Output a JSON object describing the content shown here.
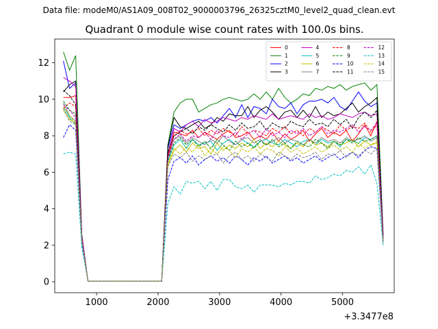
{
  "header": {
    "supertitle": "Data file: modeM0/AS1A09_008T02_9000003796_26325cztM0_level2_quad_clean.evt",
    "title": "Quadrant 0 module wise count rates with 100.0s bins."
  },
  "chart_data": {
    "type": "line",
    "title": "Quadrant 0 module wise count rates with 100.0s bins.",
    "xlabel": "",
    "ylabel": "",
    "x_offset_label": "+3.3477e8",
    "xlim": [
      320,
      5840
    ],
    "ylim": [
      -0.6,
      13.3
    ],
    "xticks": [
      1000,
      2000,
      3000,
      4000,
      5000
    ],
    "xtick_labels": [
      "1000",
      "2000",
      "3000",
      "4000",
      "5000"
    ],
    "yticks": [
      0,
      2,
      4,
      6,
      8,
      10,
      12
    ],
    "ytick_labels": [
      "0",
      "2",
      "4",
      "6",
      "8",
      "10",
      "12"
    ],
    "grid": false,
    "legend": {
      "placement": "top-right",
      "ncol": 4
    },
    "x": [
      460,
      560,
      660,
      760,
      860,
      960,
      1060,
      1160,
      1260,
      1360,
      1460,
      1560,
      1660,
      1760,
      1860,
      1960,
      2060,
      2160,
      2260,
      2360,
      2460,
      2560,
      2660,
      2760,
      2860,
      2960,
      3060,
      3160,
      3260,
      3360,
      3460,
      3560,
      3660,
      3760,
      3860,
      3960,
      4060,
      4160,
      4260,
      4360,
      4460,
      4560,
      4660,
      4760,
      4860,
      4960,
      5060,
      5160,
      5260,
      5360,
      5460,
      5560,
      5660
    ],
    "series": [
      {
        "name": "0",
        "color": "#ff0000",
        "dash": "solid",
        "values": [
          10.1,
          10.1,
          10.2,
          2.4,
          0.03,
          0.03,
          0.03,
          0.03,
          0.03,
          0.03,
          0.03,
          0.03,
          0.03,
          0.03,
          0.03,
          0.03,
          0.03,
          6.8,
          8.2,
          8.1,
          8.0,
          8.3,
          7.9,
          8.2,
          8.0,
          7.8,
          8.1,
          8.3,
          7.9,
          8.0,
          8.2,
          7.8,
          8.0,
          7.8,
          8.2,
          7.7,
          8.1,
          7.8,
          8.0,
          8.3,
          7.7,
          8.1,
          8.4,
          7.9,
          8.2,
          8.0,
          8.3,
          7.7,
          8.1,
          8.6,
          8.0,
          8.8,
          2.5
        ]
      },
      {
        "name": "1",
        "color": "#008000",
        "dash": "solid",
        "values": [
          12.6,
          11.6,
          12.4,
          2.6,
          0.03,
          0.03,
          0.03,
          0.03,
          0.03,
          0.03,
          0.03,
          0.03,
          0.03,
          0.03,
          0.03,
          0.03,
          0.03,
          7.5,
          9.3,
          9.8,
          10.0,
          10.0,
          9.3,
          9.5,
          9.7,
          9.8,
          10.0,
          10.1,
          10.0,
          9.9,
          10.0,
          10.3,
          10.0,
          10.4,
          10.0,
          10.6,
          10.1,
          9.8,
          10.0,
          10.3,
          10.2,
          10.6,
          10.5,
          10.7,
          10.6,
          10.8,
          10.5,
          10.7,
          10.8,
          10.9,
          10.5,
          10.8,
          2.7
        ]
      },
      {
        "name": "2",
        "color": "#0000ff",
        "dash": "solid",
        "values": [
          12.1,
          10.6,
          10.9,
          2.6,
          0.03,
          0.03,
          0.03,
          0.03,
          0.03,
          0.03,
          0.03,
          0.03,
          0.03,
          0.03,
          0.03,
          0.03,
          0.03,
          7.3,
          8.6,
          8.4,
          8.6,
          8.8,
          8.9,
          8.8,
          9.0,
          8.7,
          9.1,
          9.5,
          9.0,
          9.7,
          9.0,
          9.6,
          9.5,
          9.2,
          10.0,
          9.6,
          9.5,
          9.8,
          9.2,
          9.7,
          9.9,
          9.9,
          10.0,
          9.8,
          10.1,
          9.6,
          9.4,
          9.9,
          10.4,
          9.9,
          9.6,
          9.8,
          2.6
        ]
      },
      {
        "name": "3",
        "color": "#000000",
        "dash": "solid",
        "values": [
          10.4,
          10.8,
          11.0,
          2.5,
          0.03,
          0.03,
          0.03,
          0.03,
          0.03,
          0.03,
          0.03,
          0.03,
          0.03,
          0.03,
          0.03,
          0.03,
          0.03,
          7.4,
          9.0,
          8.5,
          8.4,
          8.6,
          8.8,
          8.4,
          8.6,
          9.0,
          8.8,
          9.2,
          9.1,
          9.1,
          9.6,
          9.0,
          9.4,
          9.6,
          9.3,
          8.9,
          9.3,
          9.4,
          9.0,
          9.4,
          9.0,
          9.6,
          9.0,
          9.3,
          9.1,
          9.2,
          9.5,
          9.8,
          9.3,
          9.6,
          9.8,
          10.1,
          2.5
        ]
      },
      {
        "name": "4",
        "color": "#bf00bf",
        "dash": "solid",
        "values": [
          11.2,
          11.0,
          10.7,
          2.6,
          0.03,
          0.03,
          0.03,
          0.03,
          0.03,
          0.03,
          0.03,
          0.03,
          0.03,
          0.03,
          0.03,
          0.03,
          0.03,
          7.0,
          8.4,
          8.2,
          8.6,
          8.8,
          8.5,
          8.9,
          8.7,
          8.8,
          9.0,
          8.9,
          8.8,
          9.0,
          8.9,
          9.1,
          9.0,
          8.9,
          9.2,
          8.9,
          9.0,
          9.1,
          9.0,
          8.9,
          9.2,
          9.0,
          9.1,
          8.9,
          9.0,
          9.2,
          9.1,
          9.0,
          9.2,
          9.3,
          9.1,
          9.2,
          2.6
        ]
      },
      {
        "name": "5",
        "color": "#00bfbf",
        "dash": "solid",
        "values": [
          9.6,
          9.0,
          8.6,
          2.3,
          0.03,
          0.03,
          0.03,
          0.03,
          0.03,
          0.03,
          0.03,
          0.03,
          0.03,
          0.03,
          0.03,
          0.03,
          0.03,
          6.6,
          7.5,
          7.8,
          7.3,
          7.8,
          7.5,
          7.6,
          7.7,
          7.2,
          7.6,
          7.8,
          7.5,
          7.8,
          7.6,
          7.4,
          7.7,
          7.8,
          7.6,
          7.5,
          7.8,
          7.6,
          7.4,
          7.7,
          7.8,
          7.5,
          7.8,
          7.6,
          7.7,
          7.4,
          7.8,
          7.7,
          7.6,
          7.9,
          7.8,
          8.0,
          2.3
        ]
      },
      {
        "name": "6",
        "color": "#bfbf00",
        "dash": "solid",
        "values": [
          9.4,
          8.9,
          8.7,
          2.3,
          0.03,
          0.03,
          0.03,
          0.03,
          0.03,
          0.03,
          0.03,
          0.03,
          0.03,
          0.03,
          0.03,
          0.03,
          0.03,
          6.4,
          7.2,
          7.5,
          7.1,
          7.6,
          7.3,
          7.4,
          7.0,
          7.6,
          7.2,
          7.5,
          7.3,
          7.6,
          7.4,
          7.8,
          7.3,
          7.6,
          7.4,
          7.7,
          7.5,
          7.3,
          7.6,
          7.4,
          7.8,
          7.5,
          7.6,
          7.4,
          7.7,
          7.5,
          7.6,
          7.8,
          7.4,
          7.7,
          7.5,
          7.6,
          2.2
        ]
      },
      {
        "name": "7",
        "color": "#808080",
        "dash": "solid",
        "values": [
          9.8,
          9.1,
          8.8,
          2.3,
          0.03,
          0.03,
          0.03,
          0.03,
          0.03,
          0.03,
          0.03,
          0.03,
          0.03,
          0.03,
          0.03,
          0.03,
          0.03,
          6.8,
          7.8,
          8.0,
          7.6,
          7.9,
          7.7,
          7.5,
          7.8,
          7.6,
          8.0,
          7.7,
          7.5,
          7.8,
          7.9,
          7.6,
          7.8,
          7.5,
          7.7,
          7.9,
          7.6,
          7.8,
          7.7,
          7.5,
          7.8,
          7.6,
          7.9,
          7.7,
          7.8,
          7.6,
          7.9,
          7.7,
          7.8,
          8.0,
          7.7,
          7.9,
          2.3
        ]
      },
      {
        "name": "8",
        "color": "#ff0000",
        "dash": "dashed",
        "values": [
          9.5,
          9.8,
          9.6,
          2.4,
          0.03,
          0.03,
          0.03,
          0.03,
          0.03,
          0.03,
          0.03,
          0.03,
          0.03,
          0.03,
          0.03,
          0.03,
          0.03,
          6.9,
          8.0,
          8.3,
          8.1,
          8.2,
          8.4,
          8.0,
          8.3,
          8.1,
          8.4,
          8.2,
          8.0,
          8.5,
          8.1,
          8.3,
          8.2,
          8.0,
          8.4,
          8.2,
          8.5,
          8.1,
          8.3,
          8.0,
          8.4,
          8.2,
          8.5,
          8.3,
          8.1,
          8.6,
          8.3,
          8.5,
          8.4,
          8.7,
          8.2,
          8.6,
          2.4
        ]
      },
      {
        "name": "9",
        "color": "#008000",
        "dash": "dashed",
        "values": [
          9.9,
          9.4,
          9.2,
          2.4,
          0.03,
          0.03,
          0.03,
          0.03,
          0.03,
          0.03,
          0.03,
          0.03,
          0.03,
          0.03,
          0.03,
          0.03,
          0.03,
          6.7,
          7.6,
          7.9,
          7.5,
          7.8,
          7.4,
          7.7,
          7.3,
          7.8,
          7.5,
          7.2,
          7.7,
          7.4,
          7.6,
          7.3,
          7.7,
          7.5,
          7.8,
          7.4,
          7.6,
          7.3,
          7.7,
          7.5,
          7.4,
          7.8,
          7.6,
          7.3,
          7.7,
          7.5,
          7.8,
          7.6,
          7.9,
          7.7,
          7.8,
          8.0,
          2.3
        ]
      },
      {
        "name": "10",
        "color": "#0000ff",
        "dash": "dashed",
        "values": [
          7.9,
          8.6,
          8.3,
          2.1,
          0.03,
          0.03,
          0.03,
          0.03,
          0.03,
          0.03,
          0.03,
          0.03,
          0.03,
          0.03,
          0.03,
          0.03,
          0.03,
          5.6,
          6.6,
          6.8,
          6.5,
          6.9,
          6.4,
          6.7,
          6.9,
          6.6,
          6.8,
          6.5,
          6.9,
          6.7,
          6.4,
          6.8,
          6.6,
          6.9,
          6.5,
          6.7,
          6.9,
          6.6,
          6.8,
          6.5,
          6.7,
          6.9,
          6.6,
          6.8,
          7.0,
          6.7,
          6.9,
          7.1,
          6.8,
          7.2,
          7.4,
          7.3,
          2.2
        ]
      },
      {
        "name": "11",
        "color": "#000000",
        "dash": "dashed",
        "values": [
          10.5,
          10.2,
          9.7,
          2.4,
          0.03,
          0.03,
          0.03,
          0.03,
          0.03,
          0.03,
          0.03,
          0.03,
          0.03,
          0.03,
          0.03,
          0.03,
          0.03,
          7.1,
          8.0,
          8.2,
          8.4,
          8.1,
          8.5,
          8.3,
          8.6,
          8.4,
          8.2,
          8.6,
          8.3,
          8.7,
          8.4,
          8.5,
          8.8,
          8.3,
          8.7,
          8.5,
          8.4,
          8.8,
          8.6,
          8.5,
          8.9,
          8.6,
          8.7,
          8.5,
          8.9,
          8.6,
          8.9,
          8.4,
          9.0,
          9.3,
          9.0,
          9.4,
          2.4
        ]
      },
      {
        "name": "12",
        "color": "#bf00bf",
        "dash": "dashed",
        "values": [
          9.7,
          9.4,
          9.0,
          2.4,
          0.03,
          0.03,
          0.03,
          0.03,
          0.03,
          0.03,
          0.03,
          0.03,
          0.03,
          0.03,
          0.03,
          0.03,
          0.03,
          6.8,
          7.8,
          8.1,
          7.7,
          8.0,
          7.9,
          8.2,
          7.8,
          8.3,
          8.0,
          7.9,
          8.2,
          7.8,
          8.1,
          8.3,
          7.9,
          8.4,
          8.0,
          8.2,
          7.9,
          8.3,
          8.1,
          8.4,
          8.0,
          8.2,
          8.5,
          8.1,
          8.3,
          8.2,
          8.4,
          8.6,
          8.2,
          8.5,
          8.3,
          8.7,
          2.3
        ]
      },
      {
        "name": "13",
        "color": "#00bfbf",
        "dash": "dashed",
        "values": [
          7.0,
          7.1,
          7.0,
          1.9,
          0.03,
          0.03,
          0.03,
          0.03,
          0.03,
          0.03,
          0.03,
          0.03,
          0.03,
          0.03,
          0.03,
          0.03,
          0.03,
          4.3,
          5.2,
          4.8,
          5.5,
          5.4,
          5.5,
          5.1,
          5.5,
          5.0,
          5.6,
          5.6,
          5.2,
          5.1,
          5.3,
          4.9,
          5.3,
          5.3,
          5.3,
          5.2,
          5.4,
          5.3,
          5.5,
          5.5,
          5.4,
          5.8,
          5.6,
          5.7,
          5.9,
          5.8,
          6.1,
          6.0,
          6.3,
          5.9,
          6.4,
          5.4,
          2.0
        ]
      },
      {
        "name": "14",
        "color": "#bfbf00",
        "dash": "dashed",
        "values": [
          9.6,
          9.1,
          8.7,
          2.3,
          0.03,
          0.03,
          0.03,
          0.03,
          0.03,
          0.03,
          0.03,
          0.03,
          0.03,
          0.03,
          0.03,
          0.03,
          0.03,
          6.5,
          7.3,
          7.0,
          7.4,
          7.1,
          7.5,
          6.9,
          7.3,
          7.0,
          7.4,
          7.2,
          6.8,
          7.3,
          7.1,
          7.4,
          7.0,
          7.3,
          7.2,
          6.9,
          7.4,
          7.1,
          7.3,
          7.0,
          7.2,
          7.4,
          7.1,
          7.3,
          7.5,
          7.2,
          7.4,
          7.1,
          7.6,
          7.3,
          7.5,
          7.7,
          2.2
        ]
      },
      {
        "name": "15",
        "color": "#808080",
        "dash": "dashed",
        "values": [
          9.5,
          8.8,
          8.6,
          2.3,
          0.03,
          0.03,
          0.03,
          0.03,
          0.03,
          0.03,
          0.03,
          0.03,
          0.03,
          0.03,
          0.03,
          0.03,
          0.03,
          6.3,
          7.0,
          6.8,
          7.1,
          6.6,
          6.9,
          6.7,
          6.9,
          7.0,
          6.5,
          6.9,
          7.1,
          6.7,
          6.9,
          6.6,
          7.0,
          6.8,
          6.6,
          7.1,
          6.9,
          6.7,
          7.0,
          6.8,
          6.9,
          7.1,
          6.7,
          7.0,
          6.9,
          7.2,
          6.8,
          7.1,
          6.9,
          7.2,
          7.0,
          7.3,
          2.1
        ]
      }
    ]
  }
}
